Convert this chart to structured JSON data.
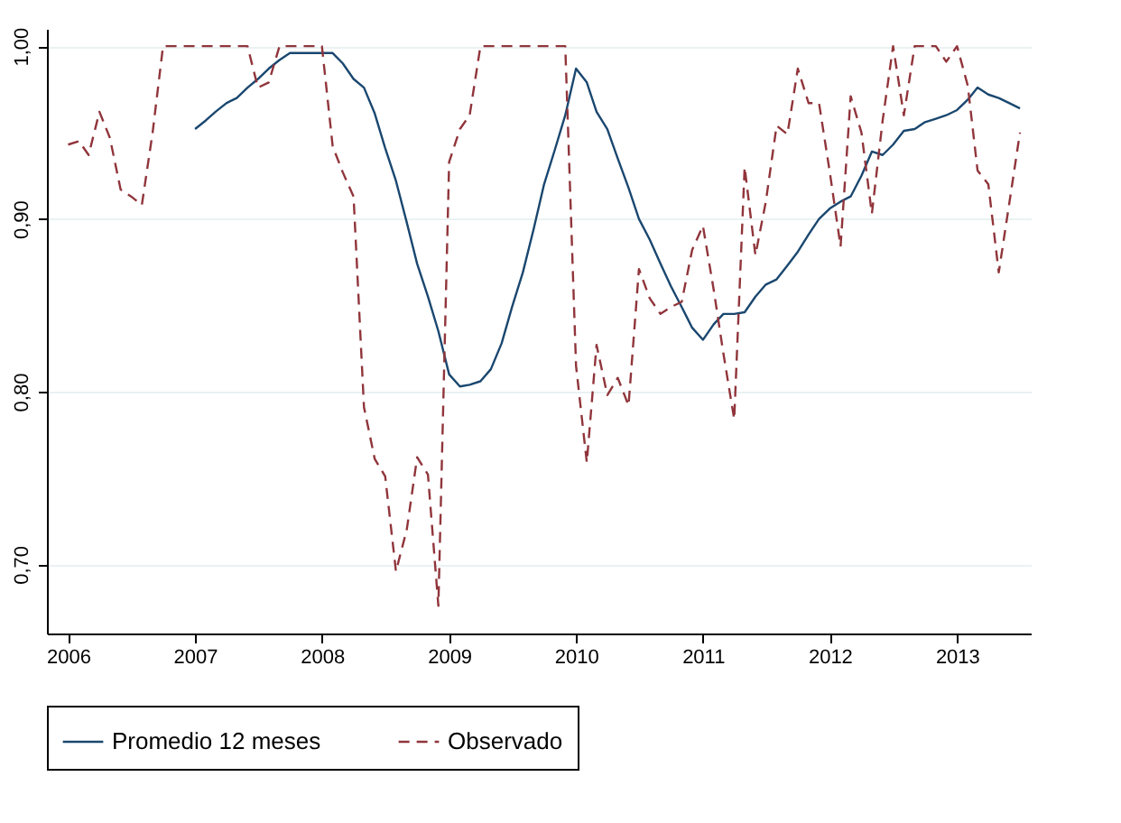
{
  "chart_data": {
    "type": "line",
    "xlim": [
      "2005-11",
      "2013-08"
    ],
    "xticks": [
      "2006",
      "2007",
      "2008",
      "2009",
      "2010",
      "2011",
      "2012",
      "2013"
    ],
    "ylim": [
      0.66,
      1.01
    ],
    "yticks": [
      {
        "value": 0.7,
        "label": "0,70"
      },
      {
        "value": 0.8,
        "label": "0,80"
      },
      {
        "value": 0.9,
        "label": "0,90"
      },
      {
        "value": 1.0,
        "label": "1,00"
      }
    ],
    "grid": "y",
    "legend": "bottom",
    "marker": "none",
    "series": [
      {
        "name": "Promedio 12 meses",
        "color": "#1a476f",
        "line_style": "solid",
        "x": [
          "2007-01",
          "2007-02",
          "2007-03",
          "2007-04",
          "2007-05",
          "2007-06",
          "2007-07",
          "2007-08",
          "2007-09",
          "2007-10",
          "2007-11",
          "2007-12",
          "2008-01",
          "2008-02",
          "2008-03",
          "2008-04",
          "2008-05",
          "2008-06",
          "2008-07",
          "2008-08",
          "2008-09",
          "2008-10",
          "2008-11",
          "2008-12",
          "2009-01",
          "2009-02",
          "2009-03",
          "2009-04",
          "2009-05",
          "2009-06",
          "2009-07",
          "2009-08",
          "2009-09",
          "2009-10",
          "2009-11",
          "2009-12",
          "2010-01",
          "2010-02",
          "2010-03",
          "2010-04",
          "2010-05",
          "2010-06",
          "2010-07",
          "2010-08",
          "2010-09",
          "2010-10",
          "2010-11",
          "2010-12",
          "2011-01",
          "2011-02",
          "2011-03",
          "2011-04",
          "2011-05",
          "2011-06",
          "2011-07",
          "2011-08",
          "2011-09",
          "2011-10",
          "2011-11",
          "2011-12",
          "2012-01",
          "2012-02",
          "2012-03",
          "2012-04",
          "2012-05",
          "2012-06",
          "2012-07",
          "2012-08",
          "2012-09",
          "2012-10",
          "2012-11",
          "2012-12",
          "2013-01",
          "2013-02",
          "2013-03",
          "2013-04",
          "2013-05",
          "2013-06",
          "2013-07"
        ],
        "values": [
          0.952,
          0.957,
          0.962,
          0.967,
          0.97,
          0.976,
          0.981,
          0.987,
          0.992,
          0.996,
          0.996,
          0.996,
          0.996,
          0.996,
          0.99,
          0.981,
          0.976,
          0.961,
          0.941,
          0.922,
          0.898,
          0.874,
          0.855,
          0.835,
          0.81,
          0.803,
          0.804,
          0.806,
          0.813,
          0.828,
          0.849,
          0.869,
          0.894,
          0.92,
          0.94,
          0.96,
          0.987,
          0.979,
          0.962,
          0.952,
          0.935,
          0.918,
          0.9,
          0.888,
          0.874,
          0.861,
          0.849,
          0.837,
          0.83,
          0.839,
          0.845,
          0.845,
          0.846,
          0.855,
          0.862,
          0.865,
          0.873,
          0.881,
          0.891,
          0.9,
          0.906,
          0.91,
          0.913,
          0.925,
          0.939,
          0.937,
          0.943,
          0.951,
          0.952,
          0.956,
          0.958,
          0.96,
          0.963,
          0.969,
          0.976,
          0.972,
          0.97,
          0.967,
          0.964
        ]
      },
      {
        "name": "Observado",
        "color": "#90353b",
        "line_style": "dashed",
        "x": [
          "2006-01",
          "2006-02",
          "2006-03",
          "2006-04",
          "2006-05",
          "2006-06",
          "2006-07",
          "2006-08",
          "2006-09",
          "2006-10",
          "2006-11",
          "2006-12",
          "2007-01",
          "2007-02",
          "2007-03",
          "2007-04",
          "2007-05",
          "2007-06",
          "2007-07",
          "2007-08",
          "2007-09",
          "2007-10",
          "2007-11",
          "2007-12",
          "2008-01",
          "2008-02",
          "2008-03",
          "2008-04",
          "2008-05",
          "2008-06",
          "2008-07",
          "2008-08",
          "2008-09",
          "2008-10",
          "2008-11",
          "2008-12",
          "2009-01",
          "2009-02",
          "2009-03",
          "2009-04",
          "2009-05",
          "2009-06",
          "2009-07",
          "2009-08",
          "2009-09",
          "2009-10",
          "2009-11",
          "2009-12",
          "2010-01",
          "2010-02",
          "2010-03",
          "2010-04",
          "2010-05",
          "2010-06",
          "2010-07",
          "2010-08",
          "2010-09",
          "2010-10",
          "2010-11",
          "2010-12",
          "2011-01",
          "2011-02",
          "2011-03",
          "2011-04",
          "2011-05",
          "2011-06",
          "2011-07",
          "2011-08",
          "2011-09",
          "2011-10",
          "2011-11",
          "2011-12",
          "2012-01",
          "2012-02",
          "2012-03",
          "2012-04",
          "2012-05",
          "2012-06",
          "2012-07",
          "2012-08",
          "2012-09",
          "2012-10",
          "2012-11",
          "2012-12",
          "2013-01",
          "2013-02",
          "2013-03",
          "2013-04",
          "2013-05",
          "2013-06",
          "2013-07"
        ],
        "values": [
          0.943,
          0.945,
          0.937,
          0.962,
          0.947,
          0.917,
          0.913,
          0.908,
          0.95,
          1.0,
          1.0,
          1.0,
          1.0,
          1.0,
          1.0,
          1.0,
          1.0,
          1.0,
          0.976,
          0.979,
          1.0,
          1.0,
          1.0,
          1.0,
          1.0,
          0.942,
          0.927,
          0.913,
          0.791,
          0.761,
          0.751,
          0.696,
          0.72,
          0.762,
          0.752,
          0.676,
          0.933,
          0.952,
          0.96,
          1.0,
          1.0,
          1.0,
          1.0,
          1.0,
          1.0,
          1.0,
          1.0,
          1.0,
          0.815,
          0.759,
          0.827,
          0.798,
          0.808,
          0.792,
          0.871,
          0.854,
          0.845,
          0.849,
          0.852,
          0.882,
          0.896,
          0.859,
          0.822,
          0.784,
          0.93,
          0.879,
          0.91,
          0.954,
          0.949,
          0.987,
          0.967,
          0.967,
          0.927,
          0.884,
          0.971,
          0.95,
          0.903,
          0.957,
          1.0,
          0.96,
          1.0,
          1.0,
          1.0,
          0.991,
          1.0,
          0.977,
          0.928,
          0.92,
          0.869,
          0.91,
          0.95
        ]
      }
    ]
  }
}
